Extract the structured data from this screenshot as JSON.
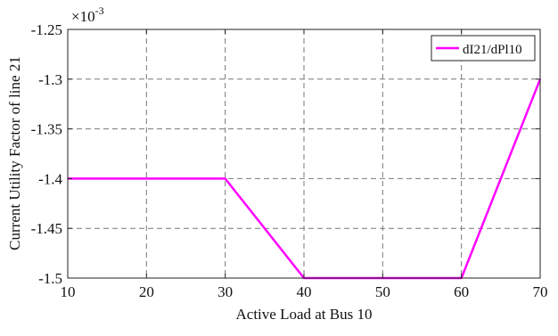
{
  "chart_data": {
    "type": "line",
    "title": "",
    "xlabel": "Active Load at Bus 10",
    "ylabel": "Current Utility Factor of line 21",
    "y_multiplier": "×10",
    "y_multiplier_exp": "-3",
    "xlim": [
      10,
      70
    ],
    "ylim": [
      -1.5,
      -1.25
    ],
    "x_ticks": [
      10,
      20,
      30,
      40,
      50,
      60,
      70
    ],
    "x_tick_labels": [
      "10",
      "20",
      "30",
      "40",
      "50",
      "60",
      "70"
    ],
    "y_ticks": [
      -1.5,
      -1.45,
      -1.4,
      -1.35,
      -1.3,
      -1.25
    ],
    "y_tick_labels": [
      "-1.5",
      "-1.45",
      "-1.4",
      "-1.35",
      "-1.3",
      "-1.25"
    ],
    "grid": true,
    "legend_position": "top-right",
    "series": [
      {
        "name": "dI21/dPl10",
        "color": "#ff00ff",
        "x": [
          10,
          30,
          40,
          60,
          70
        ],
        "y": [
          -1.4,
          -1.4,
          -1.5,
          -1.5,
          -1.3
        ]
      }
    ]
  }
}
